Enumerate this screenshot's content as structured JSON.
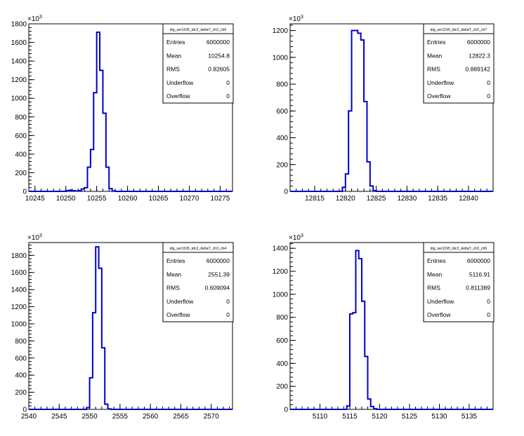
{
  "chart_data": [
    {
      "type": "bar",
      "title": "",
      "xlabel": "",
      "ylabel": "",
      "y_multiplier_label": "×10",
      "y_multiplier_exp": "3",
      "xlim": [
        10244,
        10277
      ],
      "ylim": [
        0,
        1800
      ],
      "x_ticks": [
        10245,
        10250,
        10255,
        10260,
        10265,
        10270,
        10275
      ],
      "y_ticks": [
        0,
        200,
        400,
        600,
        800,
        1000,
        1200,
        1400,
        1600,
        1800
      ],
      "bin_width": 0.5,
      "bins": [
        [
          10250.0,
          8
        ],
        [
          10250.5,
          12
        ],
        [
          10251.0,
          8
        ],
        [
          10251.5,
          4
        ],
        [
          10252.0,
          8
        ],
        [
          10252.5,
          25
        ],
        [
          10253.0,
          40
        ],
        [
          10253.5,
          260
        ],
        [
          10254.0,
          450
        ],
        [
          10254.5,
          1060
        ],
        [
          10255.0,
          1710
        ],
        [
          10255.5,
          1300
        ],
        [
          10256.0,
          840
        ],
        [
          10256.5,
          260
        ],
        [
          10257.0,
          30
        ],
        [
          10257.5,
          5
        ]
      ],
      "stats": {
        "name": "dig_ser1195_tdc2_deltaT_ch2_ch6",
        "rows": [
          {
            "label": "Entries",
            "value": "6000000"
          },
          {
            "label": "Mean",
            "value": "10254.8"
          },
          {
            "label": "RMS",
            "value": "0.82605"
          },
          {
            "label": "Underflow",
            "value": "0"
          },
          {
            "label": "Overflow",
            "value": "0"
          }
        ]
      },
      "line_color": "#0000cc"
    },
    {
      "type": "bar",
      "title": "",
      "xlabel": "",
      "ylabel": "",
      "y_multiplier_label": "×10",
      "y_multiplier_exp": "3",
      "xlim": [
        12811,
        12844
      ],
      "ylim": [
        0,
        1250
      ],
      "x_ticks": [
        12815,
        12820,
        12825,
        12830,
        12835,
        12840
      ],
      "y_ticks": [
        0,
        200,
        400,
        600,
        800,
        1000,
        1200
      ],
      "bin_width": 0.5,
      "bins": [
        [
          12819.5,
          30
        ],
        [
          12820.0,
          130
        ],
        [
          12820.5,
          600
        ],
        [
          12821.0,
          1200
        ],
        [
          12821.5,
          1200
        ],
        [
          12822.0,
          1180
        ],
        [
          12822.5,
          1130
        ],
        [
          12823.0,
          670
        ],
        [
          12823.5,
          220
        ],
        [
          12824.0,
          40
        ],
        [
          12824.5,
          5
        ]
      ],
      "stats": {
        "name": "dig_ser1195_tdc2_deltaT_ch2_ch7",
        "rows": [
          {
            "label": "Entries",
            "value": "6000000"
          },
          {
            "label": "Mean",
            "value": "12822.3"
          },
          {
            "label": "RMS",
            "value": "0.889142"
          },
          {
            "label": "Underflow",
            "value": "0"
          },
          {
            "label": "Overflow",
            "value": "0"
          }
        ]
      },
      "line_color": "#0000cc"
    },
    {
      "type": "bar",
      "title": "",
      "xlabel": "",
      "ylabel": "",
      "y_multiplier_label": "×10",
      "y_multiplier_exp": "3",
      "xlim": [
        2540,
        2573.5
      ],
      "ylim": [
        0,
        1950
      ],
      "x_ticks": [
        2540,
        2545,
        2550,
        2555,
        2560,
        2565,
        2570
      ],
      "y_ticks": [
        0,
        200,
        400,
        600,
        800,
        1000,
        1200,
        1400,
        1600,
        1800
      ],
      "bin_width": 0.5,
      "bins": [
        [
          2549.5,
          20
        ],
        [
          2550.0,
          370
        ],
        [
          2550.5,
          1130
        ],
        [
          2551.0,
          1900
        ],
        [
          2551.5,
          1650
        ],
        [
          2552.0,
          720
        ],
        [
          2552.5,
          60
        ],
        [
          2553.0,
          5
        ]
      ],
      "stats": {
        "name": "dig_ser1195_tdc2_deltaT_ch3_ch4",
        "rows": [
          {
            "label": "Entries",
            "value": "6000000"
          },
          {
            "label": "Mean",
            "value": "2551.39"
          },
          {
            "label": "RMS",
            "value": "0.609094"
          },
          {
            "label": "Underflow",
            "value": "0"
          },
          {
            "label": "Overflow",
            "value": "0"
          }
        ]
      },
      "line_color": "#0000cc"
    },
    {
      "type": "bar",
      "title": "",
      "xlabel": "",
      "ylabel": "",
      "y_multiplier_label": "×10",
      "y_multiplier_exp": "3",
      "xlim": [
        5105,
        5139
      ],
      "ylim": [
        0,
        1450
      ],
      "x_ticks": [
        5110,
        5115,
        5120,
        5125,
        5130,
        5135
      ],
      "y_ticks": [
        0,
        200,
        400,
        600,
        800,
        1000,
        1200,
        1400
      ],
      "bin_width": 0.5,
      "bins": [
        [
          5114.5,
          30
        ],
        [
          5115.0,
          830
        ],
        [
          5115.5,
          840
        ],
        [
          5116.0,
          1380
        ],
        [
          5116.5,
          1310
        ],
        [
          5117.0,
          940
        ],
        [
          5117.5,
          460
        ],
        [
          5118.0,
          90
        ],
        [
          5118.5,
          25
        ],
        [
          5119.0,
          5
        ]
      ],
      "stats": {
        "name": "dig_ser1195_tdc2_deltaT_ch3_ch5",
        "rows": [
          {
            "label": "Entries",
            "value": "6000000"
          },
          {
            "label": "Mean",
            "value": "5116.91"
          },
          {
            "label": "RMS",
            "value": "0.811389"
          },
          {
            "label": "Underflow",
            "value": "0"
          },
          {
            "label": "Overflow",
            "value": "0"
          }
        ]
      },
      "line_color": "#0000cc"
    }
  ]
}
